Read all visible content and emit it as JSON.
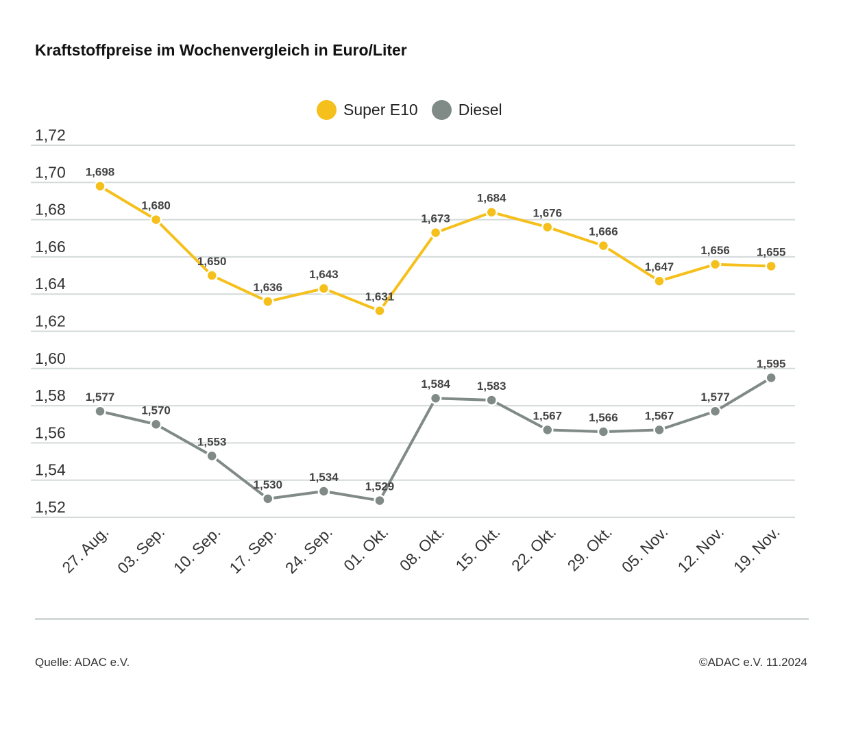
{
  "title": "Kraftstoffpreise im Wochenvergleich in Euro/Liter",
  "footer": {
    "source": "Quelle: ADAC e.V.",
    "copyright": "©ADAC e.V. 11.2024"
  },
  "colors": {
    "super": "#f5c01c",
    "diesel": "#808a87",
    "grid": "#d3d9d9",
    "label": "#444444",
    "axis_text": "#333333"
  },
  "chart_data": {
    "type": "line",
    "categories": [
      "27. Aug.",
      "03. Sep.",
      "10. Sep.",
      "17. Sep.",
      "24. Sep.",
      "01. Okt.",
      "08. Okt.",
      "15. Okt.",
      "22. Okt.",
      "29. Okt.",
      "05. Nov.",
      "12. Nov.",
      "19. Nov."
    ],
    "y_ticks": [
      "1,72",
      "1,70",
      "1,68",
      "1,66",
      "1,64",
      "1,62",
      "1,60",
      "1,58",
      "1,56",
      "1,54",
      "1,52"
    ],
    "ylim": [
      1.51,
      1.725
    ],
    "grid": true,
    "legend_position": "top-center",
    "series": [
      {
        "name": "Super E10",
        "values": [
          1.698,
          1.68,
          1.65,
          1.636,
          1.643,
          1.631,
          1.673,
          1.684,
          1.676,
          1.666,
          1.647,
          1.656,
          1.655
        ],
        "labels": [
          "1,698",
          "1,680",
          "1,650",
          "1,636",
          "1,643",
          "1,631",
          "1,673",
          "1,684",
          "1,676",
          "1,666",
          "1,647",
          "1,656",
          "1,655"
        ]
      },
      {
        "name": "Diesel",
        "values": [
          1.577,
          1.57,
          1.553,
          1.53,
          1.534,
          1.529,
          1.584,
          1.583,
          1.567,
          1.566,
          1.567,
          1.577,
          1.595
        ],
        "labels": [
          "1,577",
          "1,570",
          "1,553",
          "1,530",
          "1,534",
          "1,529",
          "1,584",
          "1,583",
          "1,567",
          "1,566",
          "1,567",
          "1,577",
          "1,595"
        ]
      }
    ]
  }
}
